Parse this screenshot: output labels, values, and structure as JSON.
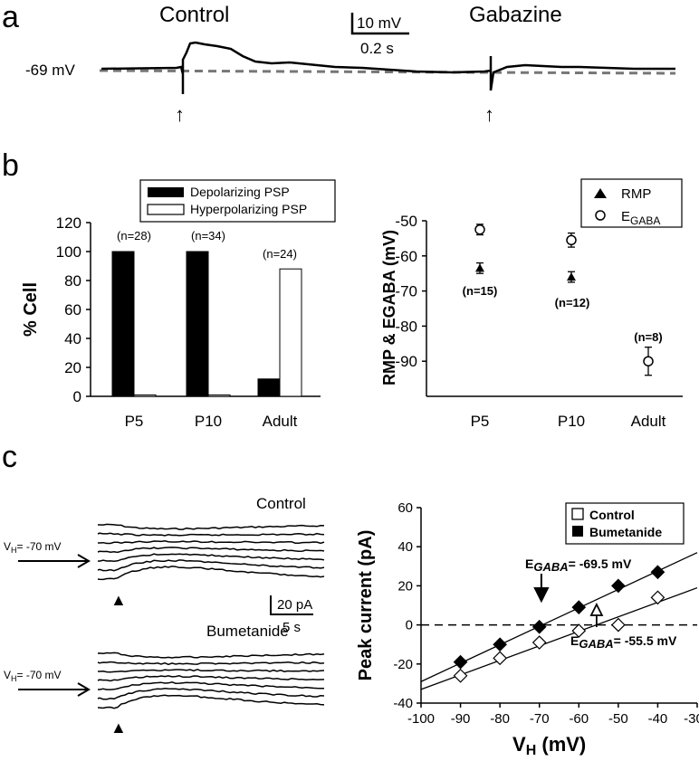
{
  "panel_labels": {
    "a": "a",
    "b": "b",
    "c": "c"
  },
  "panel_a": {
    "condition_left": "Control",
    "condition_right": "Gabazine",
    "resting_label": "-69 mV",
    "scalebar_voltage": "10 mV",
    "scalebar_time": "0.2 s",
    "stimulus_marker": "↑"
  },
  "panel_c_traces": {
    "control_label": "Control",
    "bumetanide_label": "Bumetanide",
    "holding_label": "V",
    "holding_sub": "H",
    "holding_value": "= -70 mV",
    "scalebar_current": "20 pA",
    "scalebar_time": "5 s",
    "stim_marker": "▲"
  },
  "colors": {
    "bar_dep": "#000000",
    "bar_hyp": "#ffffff",
    "dashed": "#777777"
  },
  "chart_data": [
    {
      "id": "b-left",
      "type": "bar",
      "ylabel": "% Cell",
      "ylim": [
        0,
        120
      ],
      "yticks": [
        0,
        20,
        40,
        60,
        80,
        100,
        120
      ],
      "categories": [
        "P5",
        "P10",
        "Adult"
      ],
      "n_labels": [
        "(n=28)",
        "(n=34)",
        "(n=24)"
      ],
      "series": [
        {
          "name": "Depolarizing PSP",
          "values": [
            100,
            100,
            12
          ]
        },
        {
          "name": "Hyperpolarizing PSP",
          "values": [
            1,
            1,
            88
          ]
        }
      ],
      "legend": "top"
    },
    {
      "id": "b-right",
      "type": "scatter",
      "ylabel": "RMP & EGABA (mV)",
      "ylim": [
        -100,
        -50
      ],
      "yticks": [
        -50,
        -60,
        -70,
        -80,
        -90
      ],
      "categories": [
        "P5",
        "P10",
        "Adult"
      ],
      "series": [
        {
          "name": "RMP",
          "marker": "triangle",
          "values": [
            -63.5,
            -66,
            null
          ],
          "errors": [
            1.5,
            1.5,
            null
          ]
        },
        {
          "name": "EGABA",
          "legend_main": "E",
          "legend_sub": "GABA",
          "marker": "circle",
          "values": [
            -52.5,
            -55.5,
            -90
          ],
          "errors": [
            1.5,
            2,
            4
          ]
        }
      ],
      "n_labels": [
        "(n=15)",
        "(n=12)",
        "(n=8)"
      ],
      "legend": "top-right"
    },
    {
      "id": "c-right",
      "type": "scatter",
      "xlabel": "VH (mV)",
      "xlabel_main": "V",
      "xlabel_sub": "H",
      "xlabel_unit": " (mV)",
      "ylabel": "Peak current (pA)",
      "xlim": [
        -100,
        -30
      ],
      "ylim": [
        -40,
        60
      ],
      "xticks": [
        -100,
        -90,
        -80,
        -70,
        -60,
        -50,
        -40,
        -30
      ],
      "yticks": [
        -40,
        -20,
        0,
        20,
        40,
        60
      ],
      "series": [
        {
          "name": "Control",
          "marker": "open-diamond",
          "x": [
            -90,
            -80,
            -70,
            -60,
            -50,
            -40
          ],
          "y": [
            -26,
            -17,
            -9,
            -3,
            0,
            14
          ]
        },
        {
          "name": "Bumetanide",
          "marker": "filled-diamond",
          "x": [
            -90,
            -80,
            -70,
            -60,
            -50,
            -40
          ],
          "y": [
            -19,
            -10,
            -1,
            9,
            20,
            27
          ]
        }
      ],
      "fit_lines": [
        {
          "series": "Control",
          "x": [
            -100,
            -30
          ],
          "y": [
            -33,
            19
          ]
        },
        {
          "series": "Bumetanide",
          "x": [
            -100,
            -30
          ],
          "y": [
            -29,
            37
          ]
        }
      ],
      "zero_line": 0,
      "annotations": [
        {
          "main": "E",
          "sub": "GABA",
          "text": "= -69.5 mV",
          "x": -69.5
        },
        {
          "main": "E",
          "sub": "GABA",
          "text": "= -55.5 mV",
          "x": -55.5
        }
      ],
      "legend": "top-right"
    }
  ]
}
